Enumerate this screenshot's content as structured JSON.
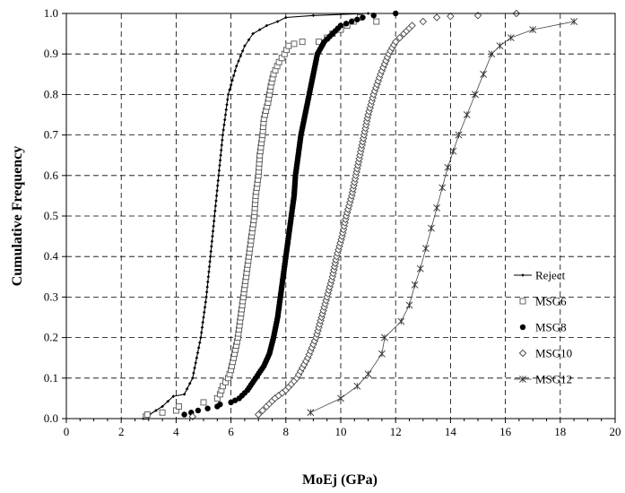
{
  "chart_data": {
    "type": "line",
    "xlabel": "MoEj (GPa)",
    "ylabel": "Cumulative Frequency",
    "xlim": [
      0,
      20
    ],
    "ylim": [
      0,
      1
    ],
    "xticks": [
      "0",
      "2",
      "4",
      "6",
      "8",
      "10",
      "12",
      "14",
      "16",
      "18",
      "20"
    ],
    "yticks": [
      "0.0",
      "0.1",
      "0.2",
      "0.3",
      "0.4",
      "0.5",
      "0.6",
      "0.7",
      "0.8",
      "0.9",
      "1.0"
    ],
    "grid": "dashed",
    "legend_position": "bottom-right",
    "series": [
      {
        "name": "Reject",
        "marker": "small-diamond-line",
        "points": [
          [
            2.8,
            0.0
          ],
          [
            3.5,
            0.03
          ],
          [
            3.9,
            0.055
          ],
          [
            4.3,
            0.06
          ],
          [
            4.6,
            0.1
          ],
          [
            4.9,
            0.2
          ],
          [
            5.1,
            0.3
          ],
          [
            5.25,
            0.4
          ],
          [
            5.4,
            0.5
          ],
          [
            5.55,
            0.6
          ],
          [
            5.7,
            0.7
          ],
          [
            5.9,
            0.8
          ],
          [
            6.2,
            0.87
          ],
          [
            6.5,
            0.92
          ],
          [
            6.8,
            0.95
          ],
          [
            7.3,
            0.97
          ],
          [
            7.7,
            0.98
          ],
          [
            8.0,
            0.99
          ],
          [
            9.0,
            0.995
          ],
          [
            11.0,
            1.0
          ]
        ]
      },
      {
        "name": "MSG6",
        "marker": "open-square",
        "points": [
          [
            2.9,
            0.005
          ],
          [
            2.95,
            0.01
          ],
          [
            3.5,
            0.015
          ],
          [
            4.0,
            0.02
          ],
          [
            4.1,
            0.03
          ],
          [
            5.0,
            0.04
          ],
          [
            5.5,
            0.05
          ],
          [
            5.6,
            0.06
          ],
          [
            5.7,
            0.08
          ],
          [
            5.9,
            0.1
          ],
          [
            6.0,
            0.12
          ],
          [
            6.1,
            0.15
          ],
          [
            6.25,
            0.2
          ],
          [
            6.35,
            0.25
          ],
          [
            6.45,
            0.3
          ],
          [
            6.55,
            0.35
          ],
          [
            6.65,
            0.4
          ],
          [
            6.75,
            0.45
          ],
          [
            6.85,
            0.5
          ],
          [
            6.9,
            0.55
          ],
          [
            7.0,
            0.6
          ],
          [
            7.05,
            0.65
          ],
          [
            7.15,
            0.7
          ],
          [
            7.2,
            0.74
          ],
          [
            7.35,
            0.78
          ],
          [
            7.45,
            0.82
          ],
          [
            7.55,
            0.85
          ],
          [
            7.75,
            0.88
          ],
          [
            7.95,
            0.9
          ],
          [
            8.1,
            0.92
          ],
          [
            8.3,
            0.925
          ],
          [
            8.6,
            0.93
          ],
          [
            9.2,
            0.93
          ],
          [
            9.5,
            0.94
          ],
          [
            9.7,
            0.95
          ],
          [
            10.0,
            0.96
          ],
          [
            10.7,
            0.99
          ],
          [
            11.3,
            0.98
          ]
        ]
      },
      {
        "name": "MSG8",
        "marker": "filled-circle",
        "points": [
          [
            4.3,
            0.01
          ],
          [
            4.8,
            0.02
          ],
          [
            5.5,
            0.03
          ],
          [
            5.6,
            0.035
          ],
          [
            6.0,
            0.04
          ],
          [
            6.3,
            0.05
          ],
          [
            6.6,
            0.07
          ],
          [
            6.9,
            0.1
          ],
          [
            7.2,
            0.13
          ],
          [
            7.4,
            0.16
          ],
          [
            7.55,
            0.2
          ],
          [
            7.7,
            0.25
          ],
          [
            7.8,
            0.3
          ],
          [
            7.9,
            0.35
          ],
          [
            8.0,
            0.4
          ],
          [
            8.1,
            0.45
          ],
          [
            8.2,
            0.5
          ],
          [
            8.3,
            0.55
          ],
          [
            8.35,
            0.6
          ],
          [
            8.45,
            0.65
          ],
          [
            8.55,
            0.7
          ],
          [
            8.7,
            0.75
          ],
          [
            8.85,
            0.8
          ],
          [
            9.0,
            0.85
          ],
          [
            9.15,
            0.9
          ],
          [
            9.4,
            0.93
          ],
          [
            9.7,
            0.95
          ],
          [
            10.0,
            0.97
          ],
          [
            10.4,
            0.98
          ],
          [
            10.8,
            0.99
          ],
          [
            11.2,
            0.995
          ],
          [
            12.0,
            1.0
          ]
        ]
      },
      {
        "name": "MSG10",
        "marker": "open-diamond",
        "points": [
          [
            4.6,
            0.005
          ],
          [
            7.0,
            0.01
          ],
          [
            7.3,
            0.03
          ],
          [
            7.6,
            0.05
          ],
          [
            8.0,
            0.07
          ],
          [
            8.4,
            0.1
          ],
          [
            8.8,
            0.15
          ],
          [
            9.1,
            0.2
          ],
          [
            9.3,
            0.25
          ],
          [
            9.5,
            0.3
          ],
          [
            9.7,
            0.35
          ],
          [
            9.85,
            0.4
          ],
          [
            10.05,
            0.45
          ],
          [
            10.2,
            0.5
          ],
          [
            10.4,
            0.55
          ],
          [
            10.55,
            0.6
          ],
          [
            10.7,
            0.65
          ],
          [
            10.85,
            0.7
          ],
          [
            11.0,
            0.75
          ],
          [
            11.2,
            0.8
          ],
          [
            11.45,
            0.85
          ],
          [
            11.75,
            0.9
          ],
          [
            12.0,
            0.93
          ],
          [
            12.3,
            0.95
          ],
          [
            12.6,
            0.97
          ],
          [
            13.0,
            0.98
          ],
          [
            13.5,
            0.99
          ],
          [
            14.0,
            0.993
          ],
          [
            15.0,
            0.995
          ],
          [
            16.4,
            1.0
          ]
        ]
      },
      {
        "name": "MSG12",
        "marker": "asterisk",
        "points": [
          [
            8.9,
            0.015
          ],
          [
            10.0,
            0.05
          ],
          [
            10.6,
            0.08
          ],
          [
            11.0,
            0.11
          ],
          [
            11.5,
            0.16
          ],
          [
            11.6,
            0.2
          ],
          [
            12.2,
            0.24
          ],
          [
            12.5,
            0.28
          ],
          [
            12.7,
            0.33
          ],
          [
            12.9,
            0.37
          ],
          [
            13.1,
            0.42
          ],
          [
            13.3,
            0.47
          ],
          [
            13.5,
            0.52
          ],
          [
            13.7,
            0.57
          ],
          [
            13.9,
            0.62
          ],
          [
            14.1,
            0.66
          ],
          [
            14.3,
            0.7
          ],
          [
            14.6,
            0.75
          ],
          [
            14.9,
            0.8
          ],
          [
            15.2,
            0.85
          ],
          [
            15.5,
            0.9
          ],
          [
            15.8,
            0.92
          ],
          [
            16.2,
            0.94
          ],
          [
            17.0,
            0.96
          ],
          [
            18.5,
            0.98
          ]
        ]
      }
    ]
  }
}
